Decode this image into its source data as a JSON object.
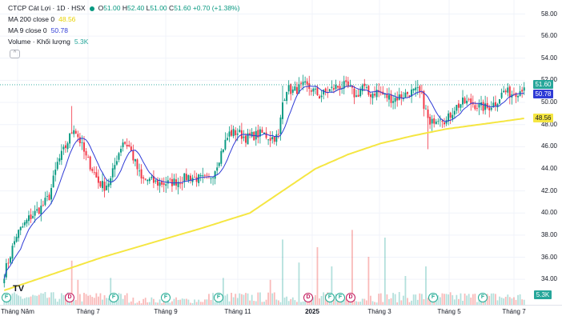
{
  "header": {
    "title": "CTCP Cát Lợi · 1D · HSX",
    "open_label": "O",
    "open": "51.00",
    "high_label": "H",
    "high": "52.40",
    "low_label": "L",
    "low": "51.00",
    "close_label": "C",
    "close": "51.60",
    "change": "+0.70 (+1.38%)",
    "up_color": "#089981"
  },
  "indicators": {
    "ma200": {
      "label": "MA 200 close 0",
      "value": "48.56",
      "color": "#f5e642"
    },
    "ma9": {
      "label": "MA 9 close 0",
      "value": "50.78",
      "color": "#2f3bd6"
    },
    "volume": {
      "label": "Volume · Khối lượng",
      "value": "5.3K",
      "color": "#26a69a"
    }
  },
  "price_tags": [
    {
      "text": "51.60",
      "color": "#26a69a",
      "value": 51.6
    },
    {
      "text": "50.78",
      "color": "#2f3bd6",
      "value": 50.78
    },
    {
      "text": "48.56",
      "color": "#f5e642",
      "value": 48.56
    }
  ],
  "logo_text": "TV",
  "volume_tag": "5.3K",
  "chart_data": {
    "type": "candlestick",
    "title": "CTCP Cát Lợi · 1D · HSX",
    "y_axis": {
      "ticks": [
        "34.00",
        "36.00",
        "38.00",
        "40.00",
        "42.00",
        "44.00",
        "46.00",
        "48.00",
        "50.00",
        "52.00",
        "54.00",
        "56.00",
        "58.00"
      ],
      "ylim": [
        32,
        58
      ]
    },
    "x_axis": {
      "ticks": [
        {
          "label": "Tháng Năm",
          "bold": false
        },
        {
          "label": "Tháng 7",
          "bold": false
        },
        {
          "label": "Tháng 9",
          "bold": false
        },
        {
          "label": "Tháng 11",
          "bold": false
        },
        {
          "label": "2025",
          "bold": true
        },
        {
          "label": "Tháng 3",
          "bold": false
        },
        {
          "label": "Tháng 5",
          "bold": false
        },
        {
          "label": "Tháng 7",
          "bold": false
        }
      ]
    },
    "events": [
      "F",
      "D",
      "F",
      "F",
      "F",
      "D",
      "F",
      "F",
      "D",
      "F",
      "F"
    ],
    "price_anchors": [
      [
        0,
        34.5
      ],
      [
        6,
        38.0
      ],
      [
        12,
        39.5
      ],
      [
        18,
        40.5
      ],
      [
        22,
        41.5
      ],
      [
        26,
        44.5
      ],
      [
        30,
        46.0
      ],
      [
        34,
        47.8
      ],
      [
        37,
        46.5
      ],
      [
        40,
        45.0
      ],
      [
        43,
        44.0
      ],
      [
        46,
        42.8
      ],
      [
        49,
        42.4
      ],
      [
        52,
        43.0
      ],
      [
        55,
        45.0
      ],
      [
        58,
        46.5
      ],
      [
        61,
        46.0
      ],
      [
        64,
        44.5
      ],
      [
        67,
        43.0
      ],
      [
        70,
        43.0
      ],
      [
        75,
        42.7
      ],
      [
        80,
        42.7
      ],
      [
        85,
        42.9
      ],
      [
        90,
        43.3
      ],
      [
        95,
        43.1
      ],
      [
        100,
        43.0
      ],
      [
        103,
        44.0
      ],
      [
        107,
        46.0
      ],
      [
        110,
        47.2
      ],
      [
        114,
        47.3
      ],
      [
        118,
        46.8
      ],
      [
        122,
        47.0
      ],
      [
        126,
        47.2
      ],
      [
        130,
        46.8
      ],
      [
        134,
        46.9
      ],
      [
        136,
        50.0
      ],
      [
        138,
        51.3
      ],
      [
        141,
        51.0
      ],
      [
        144,
        51.3
      ],
      [
        147,
        51.5
      ],
      [
        150,
        51.2
      ],
      [
        154,
        50.6
      ],
      [
        158,
        51.0
      ],
      [
        162,
        51.4
      ],
      [
        166,
        51.5
      ],
      [
        169,
        51.2
      ],
      [
        172,
        50.5
      ],
      [
        175,
        51.5
      ],
      [
        178,
        50.7
      ],
      [
        182,
        51.0
      ],
      [
        186,
        50.6
      ],
      [
        190,
        50.3
      ],
      [
        194,
        50.6
      ],
      [
        198,
        50.9
      ],
      [
        202,
        51.0
      ],
      [
        204,
        50.5
      ],
      [
        206,
        49.2
      ],
      [
        208,
        47.8
      ],
      [
        210,
        48.5
      ],
      [
        213,
        48.8
      ],
      [
        216,
        48.3
      ],
      [
        220,
        49.5
      ],
      [
        224,
        50.0
      ],
      [
        228,
        50.0
      ],
      [
        232,
        49.6
      ],
      [
        236,
        49.5
      ],
      [
        240,
        50.0
      ],
      [
        244,
        51.0
      ],
      [
        248,
        50.8
      ],
      [
        252,
        51.1
      ],
      [
        254,
        51.6
      ]
    ],
    "ma200_anchors": [
      [
        0,
        33.0
      ],
      [
        24,
        34.5
      ],
      [
        48,
        36.0
      ],
      [
        72,
        37.3
      ],
      [
        96,
        38.6
      ],
      [
        120,
        40.0
      ],
      [
        136,
        42.0
      ],
      [
        152,
        44.0
      ],
      [
        168,
        45.3
      ],
      [
        184,
        46.3
      ],
      [
        200,
        47.0
      ],
      [
        216,
        47.6
      ],
      [
        232,
        48.0
      ],
      [
        244,
        48.3
      ],
      [
        254,
        48.56
      ]
    ],
    "volume_spikes": [
      [
        33,
        2.3
      ],
      [
        36,
        1.3
      ],
      [
        52,
        1.4
      ],
      [
        107,
        1.4
      ],
      [
        130,
        1.3
      ],
      [
        136,
        3.4
      ],
      [
        144,
        2.2
      ],
      [
        153,
        3.0
      ],
      [
        160,
        2.0
      ],
      [
        170,
        3.9
      ],
      [
        178,
        2.5
      ],
      [
        186,
        3.5
      ],
      [
        196,
        1.5
      ],
      [
        206,
        2.0
      ]
    ],
    "volume_axis_max": 4.0,
    "bars": 255,
    "grid": true,
    "legend_position": "top-left"
  }
}
